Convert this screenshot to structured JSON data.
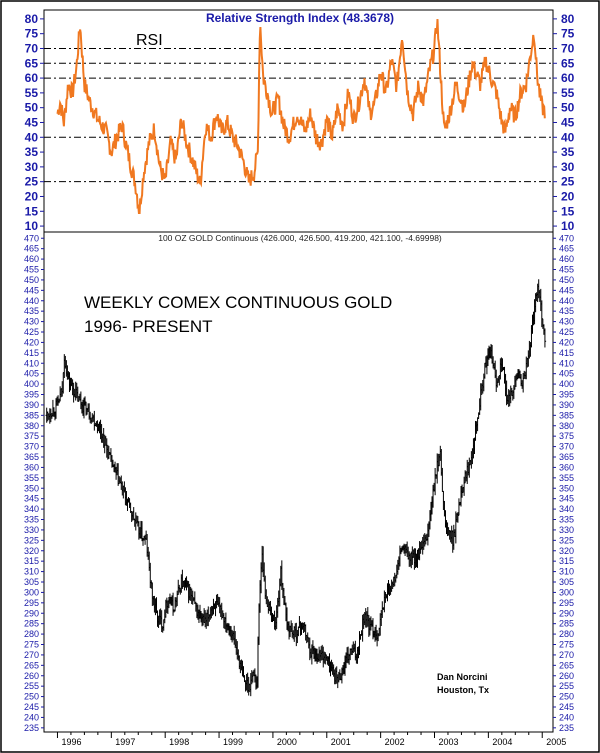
{
  "chart_data": [
    {
      "type": "line",
      "title": "Relative Strength Index (48.3678)",
      "label": "RSI",
      "ylim": [
        8,
        83
      ],
      "y_ticks": [
        10,
        15,
        20,
        25,
        30,
        35,
        40,
        45,
        50,
        55,
        60,
        65,
        70,
        75,
        80
      ],
      "reference_lines": [
        25,
        40,
        60,
        65,
        70
      ],
      "colors": {
        "series": "#f07820",
        "axis_text": "#1a1aa8",
        "reference_line": "#000000"
      },
      "grid": false,
      "x_range": [
        1996.0,
        2005.05
      ],
      "keypoints": [
        {
          "x": 1996.0,
          "y": 48
        },
        {
          "x": 1996.05,
          "y": 52
        },
        {
          "x": 1996.12,
          "y": 45
        },
        {
          "x": 1996.2,
          "y": 58
        },
        {
          "x": 1996.28,
          "y": 55
        },
        {
          "x": 1996.35,
          "y": 63
        },
        {
          "x": 1996.42,
          "y": 78
        },
        {
          "x": 1996.5,
          "y": 58
        },
        {
          "x": 1996.6,
          "y": 52
        },
        {
          "x": 1996.75,
          "y": 46
        },
        {
          "x": 1996.9,
          "y": 42
        },
        {
          "x": 1997.0,
          "y": 35
        },
        {
          "x": 1997.1,
          "y": 40
        },
        {
          "x": 1997.2,
          "y": 44
        },
        {
          "x": 1997.3,
          "y": 35
        },
        {
          "x": 1997.45,
          "y": 24
        },
        {
          "x": 1997.52,
          "y": 15
        },
        {
          "x": 1997.6,
          "y": 28
        },
        {
          "x": 1997.7,
          "y": 38
        },
        {
          "x": 1997.8,
          "y": 43
        },
        {
          "x": 1997.9,
          "y": 30
        },
        {
          "x": 1998.0,
          "y": 25
        },
        {
          "x": 1998.1,
          "y": 38
        },
        {
          "x": 1998.2,
          "y": 32
        },
        {
          "x": 1998.3,
          "y": 46
        },
        {
          "x": 1998.4,
          "y": 38
        },
        {
          "x": 1998.55,
          "y": 30
        },
        {
          "x": 1998.65,
          "y": 24
        },
        {
          "x": 1998.75,
          "y": 44
        },
        {
          "x": 1998.85,
          "y": 40
        },
        {
          "x": 1998.95,
          "y": 48
        },
        {
          "x": 1999.05,
          "y": 42
        },
        {
          "x": 1999.15,
          "y": 45
        },
        {
          "x": 1999.25,
          "y": 40
        },
        {
          "x": 1999.35,
          "y": 37
        },
        {
          "x": 1999.45,
          "y": 32
        },
        {
          "x": 1999.55,
          "y": 25
        },
        {
          "x": 1999.65,
          "y": 28
        },
        {
          "x": 1999.72,
          "y": 35
        },
        {
          "x": 1999.76,
          "y": 80
        },
        {
          "x": 1999.82,
          "y": 60
        },
        {
          "x": 1999.9,
          "y": 55
        },
        {
          "x": 1999.98,
          "y": 48
        },
        {
          "x": 2000.1,
          "y": 53
        },
        {
          "x": 2000.2,
          "y": 44
        },
        {
          "x": 2000.3,
          "y": 40
        },
        {
          "x": 2000.45,
          "y": 48
        },
        {
          "x": 2000.6,
          "y": 42
        },
        {
          "x": 2000.7,
          "y": 48
        },
        {
          "x": 2000.8,
          "y": 40
        },
        {
          "x": 2000.9,
          "y": 38
        },
        {
          "x": 2001.0,
          "y": 46
        },
        {
          "x": 2001.1,
          "y": 40
        },
        {
          "x": 2001.2,
          "y": 50
        },
        {
          "x": 2001.3,
          "y": 44
        },
        {
          "x": 2001.4,
          "y": 55
        },
        {
          "x": 2001.5,
          "y": 46
        },
        {
          "x": 2001.6,
          "y": 52
        },
        {
          "x": 2001.7,
          "y": 60
        },
        {
          "x": 2001.8,
          "y": 48
        },
        {
          "x": 2001.9,
          "y": 52
        },
        {
          "x": 2002.0,
          "y": 62
        },
        {
          "x": 2002.1,
          "y": 55
        },
        {
          "x": 2002.2,
          "y": 66
        },
        {
          "x": 2002.3,
          "y": 57
        },
        {
          "x": 2002.4,
          "y": 75
        },
        {
          "x": 2002.5,
          "y": 55
        },
        {
          "x": 2002.6,
          "y": 48
        },
        {
          "x": 2002.7,
          "y": 57
        },
        {
          "x": 2002.8,
          "y": 52
        },
        {
          "x": 2002.9,
          "y": 62
        },
        {
          "x": 2003.0,
          "y": 70
        },
        {
          "x": 2003.05,
          "y": 80
        },
        {
          "x": 2003.1,
          "y": 65
        },
        {
          "x": 2003.18,
          "y": 42
        },
        {
          "x": 2003.28,
          "y": 48
        },
        {
          "x": 2003.4,
          "y": 58
        },
        {
          "x": 2003.55,
          "y": 50
        },
        {
          "x": 2003.7,
          "y": 65
        },
        {
          "x": 2003.85,
          "y": 58
        },
        {
          "x": 2003.95,
          "y": 66
        },
        {
          "x": 2004.05,
          "y": 60
        },
        {
          "x": 2004.15,
          "y": 55
        },
        {
          "x": 2004.25,
          "y": 45
        },
        {
          "x": 2004.32,
          "y": 42
        },
        {
          "x": 2004.4,
          "y": 50
        },
        {
          "x": 2004.5,
          "y": 47
        },
        {
          "x": 2004.6,
          "y": 55
        },
        {
          "x": 2004.7,
          "y": 58
        },
        {
          "x": 2004.8,
          "y": 70
        },
        {
          "x": 2004.85,
          "y": 76
        },
        {
          "x": 2004.9,
          "y": 62
        },
        {
          "x": 2004.95,
          "y": 55
        },
        {
          "x": 2005.0,
          "y": 50
        },
        {
          "x": 2005.05,
          "y": 49
        }
      ]
    },
    {
      "type": "candlestick",
      "header": "100 OZ GOLD Continuous (426.000, 426.500, 419.200, 421.100, -4.69998)",
      "title_lines": [
        "WEEKLY COMEX CONTINUOUS GOLD",
        "1996- PRESENT"
      ],
      "credit_lines": [
        "Dan Norcini",
        "Houston, Tx"
      ],
      "ylim": [
        233,
        473
      ],
      "y_ticks": [
        235,
        240,
        245,
        250,
        255,
        260,
        265,
        270,
        275,
        280,
        285,
        290,
        295,
        300,
        305,
        310,
        315,
        320,
        325,
        330,
        335,
        340,
        345,
        350,
        355,
        360,
        365,
        370,
        375,
        380,
        385,
        390,
        395,
        400,
        405,
        410,
        415,
        420,
        425,
        430,
        435,
        440,
        445,
        450,
        455,
        460,
        465,
        470
      ],
      "x_range": [
        1995.75,
        2005.2
      ],
      "x_ticks": [
        "1996",
        "1997",
        "1998",
        "1999",
        "2000",
        "2001",
        "2002",
        "2003",
        "2004",
        "2005"
      ],
      "colors": {
        "bars": "#000000",
        "axis_text": "#1a1aa8"
      },
      "grid": false,
      "price_path": [
        {
          "x": 1995.8,
          "y": 385
        },
        {
          "x": 1996.0,
          "y": 390
        },
        {
          "x": 1996.1,
          "y": 398
        },
        {
          "x": 1996.12,
          "y": 415
        },
        {
          "x": 1996.2,
          "y": 402
        },
        {
          "x": 1996.4,
          "y": 392
        },
        {
          "x": 1996.6,
          "y": 386
        },
        {
          "x": 1996.8,
          "y": 378
        },
        {
          "x": 1997.0,
          "y": 362
        },
        {
          "x": 1997.2,
          "y": 350
        },
        {
          "x": 1997.35,
          "y": 340
        },
        {
          "x": 1997.5,
          "y": 330
        },
        {
          "x": 1997.65,
          "y": 324
        },
        {
          "x": 1997.75,
          "y": 300
        },
        {
          "x": 1997.85,
          "y": 288
        },
        {
          "x": 1997.95,
          "y": 285
        },
        {
          "x": 1998.05,
          "y": 298
        },
        {
          "x": 1998.15,
          "y": 292
        },
        {
          "x": 1998.3,
          "y": 305
        },
        {
          "x": 1998.45,
          "y": 300
        },
        {
          "x": 1998.6,
          "y": 290
        },
        {
          "x": 1998.75,
          "y": 285
        },
        {
          "x": 1998.9,
          "y": 295
        },
        {
          "x": 1999.05,
          "y": 290
        },
        {
          "x": 1999.15,
          "y": 285
        },
        {
          "x": 1999.25,
          "y": 280
        },
        {
          "x": 1999.35,
          "y": 270
        },
        {
          "x": 1999.45,
          "y": 258
        },
        {
          "x": 1999.55,
          "y": 255
        },
        {
          "x": 1999.65,
          "y": 262
        },
        {
          "x": 1999.7,
          "y": 255
        },
        {
          "x": 1999.75,
          "y": 300
        },
        {
          "x": 1999.8,
          "y": 320
        },
        {
          "x": 1999.85,
          "y": 300
        },
        {
          "x": 1999.95,
          "y": 290
        },
        {
          "x": 2000.05,
          "y": 285
        },
        {
          "x": 2000.15,
          "y": 310
        },
        {
          "x": 2000.25,
          "y": 285
        },
        {
          "x": 2000.4,
          "y": 280
        },
        {
          "x": 2000.55,
          "y": 285
        },
        {
          "x": 2000.7,
          "y": 272
        },
        {
          "x": 2000.85,
          "y": 270
        },
        {
          "x": 2000.95,
          "y": 270
        },
        {
          "x": 2001.05,
          "y": 265
        },
        {
          "x": 2001.2,
          "y": 258
        },
        {
          "x": 2001.3,
          "y": 263
        },
        {
          "x": 2001.45,
          "y": 272
        },
        {
          "x": 2001.55,
          "y": 270
        },
        {
          "x": 2001.7,
          "y": 290
        },
        {
          "x": 2001.8,
          "y": 283
        },
        {
          "x": 2001.95,
          "y": 280
        },
        {
          "x": 2002.1,
          "y": 300
        },
        {
          "x": 2002.25,
          "y": 305
        },
        {
          "x": 2002.4,
          "y": 322
        },
        {
          "x": 2002.55,
          "y": 316
        },
        {
          "x": 2002.7,
          "y": 318
        },
        {
          "x": 2002.85,
          "y": 325
        },
        {
          "x": 2003.0,
          "y": 352
        },
        {
          "x": 2003.1,
          "y": 368
        },
        {
          "x": 2003.2,
          "y": 332
        },
        {
          "x": 2003.35,
          "y": 325
        },
        {
          "x": 2003.5,
          "y": 350
        },
        {
          "x": 2003.65,
          "y": 362
        },
        {
          "x": 2003.8,
          "y": 385
        },
        {
          "x": 2003.95,
          "y": 410
        },
        {
          "x": 2004.05,
          "y": 415
        },
        {
          "x": 2004.15,
          "y": 400
        },
        {
          "x": 2004.25,
          "y": 412
        },
        {
          "x": 2004.35,
          "y": 390
        },
        {
          "x": 2004.45,
          "y": 398
        },
        {
          "x": 2004.55,
          "y": 405
        },
        {
          "x": 2004.65,
          "y": 400
        },
        {
          "x": 2004.75,
          "y": 415
        },
        {
          "x": 2004.85,
          "y": 435
        },
        {
          "x": 2004.92,
          "y": 450
        },
        {
          "x": 2004.97,
          "y": 438
        },
        {
          "x": 2005.02,
          "y": 428
        },
        {
          "x": 2005.06,
          "y": 421
        }
      ]
    }
  ]
}
